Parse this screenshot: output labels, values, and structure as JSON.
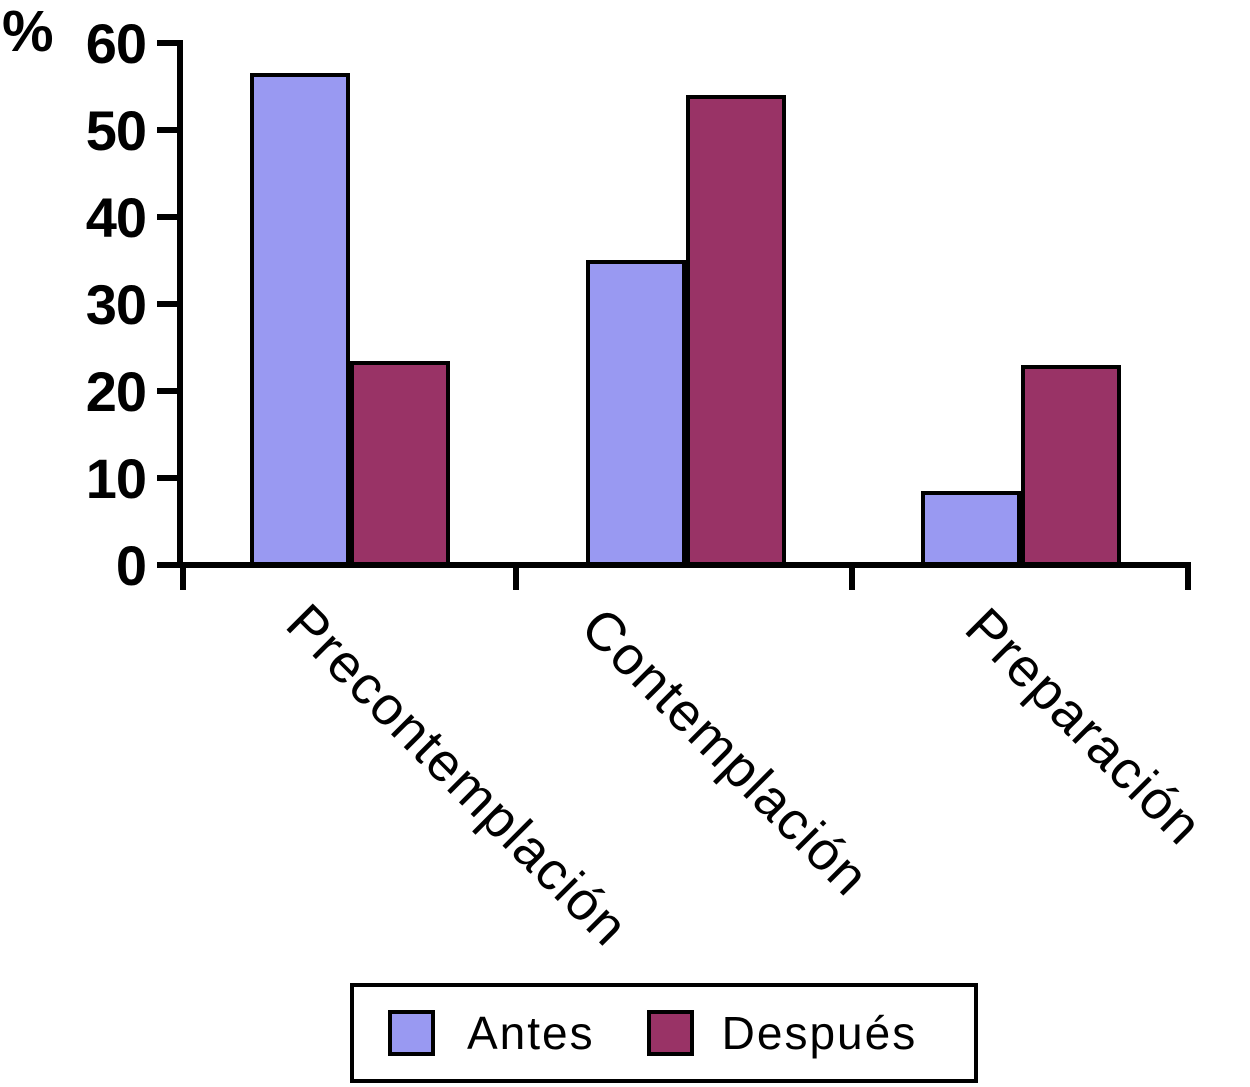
{
  "chart_data": {
    "type": "bar",
    "title": "",
    "ylabel": "%",
    "xlabel": "",
    "categories": [
      "Precontemplación",
      "Contemplación",
      "Preparación"
    ],
    "series": [
      {
        "name": "Antes",
        "color": "#9999F2",
        "values": [
          56.5,
          35,
          8.5
        ]
      },
      {
        "name": "Después",
        "color": "#993366",
        "values": [
          23.5,
          54,
          23
        ]
      }
    ],
    "ylim": [
      0,
      60
    ],
    "yticks": [
      0,
      10,
      20,
      30,
      40,
      50,
      60
    ],
    "grid": false,
    "legend_position": "bottom",
    "bar_outline_color": "#000000",
    "axis_color": "#000000",
    "background_color": "#FFFFFF"
  }
}
